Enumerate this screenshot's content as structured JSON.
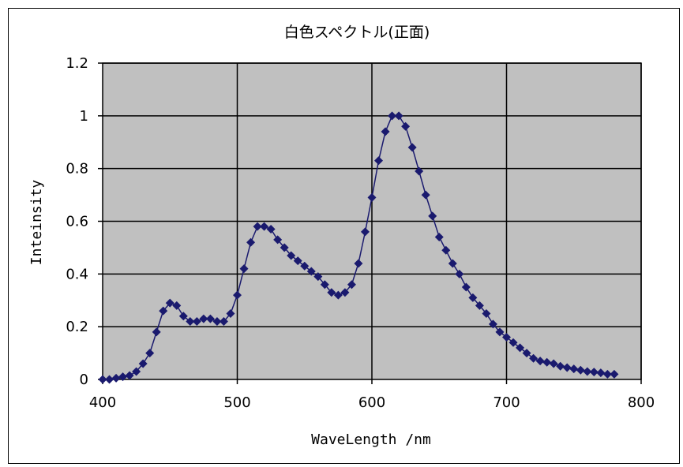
{
  "chart_data": {
    "type": "line",
    "title": "白色スペクトル(正面)",
    "xlabel": "WaveLength /nm",
    "ylabel": "Inteinsity",
    "xlim": [
      400,
      800
    ],
    "ylim": [
      0,
      1.2
    ],
    "xticks": [
      400,
      500,
      600,
      700,
      800
    ],
    "yticks": [
      0,
      0.2,
      0.4,
      0.6,
      0.8,
      1,
      1.2
    ],
    "xtick_labels": [
      "400",
      "500",
      "600",
      "700",
      "800"
    ],
    "ytick_labels": [
      "0",
      "0.2",
      "0.4",
      "0.6",
      "0.8",
      "1",
      "1.2"
    ],
    "grid": true,
    "plot_background": "#c0c0c0",
    "series_color": "#1a1a6e",
    "marker": "diamond",
    "series": [
      {
        "x": [
          400,
          405,
          410,
          415,
          420,
          425,
          430,
          435,
          440,
          445,
          450,
          455,
          460,
          465,
          470,
          475,
          480,
          485,
          490,
          495,
          500,
          505,
          510,
          515,
          520,
          525,
          530,
          535,
          540,
          545,
          550,
          555,
          560,
          565,
          570,
          575,
          580,
          585,
          590,
          595,
          600,
          605,
          610,
          615,
          620,
          625,
          630,
          635,
          640,
          645,
          650,
          655,
          660,
          665,
          670,
          675,
          680,
          685,
          690,
          695,
          700,
          705,
          710,
          715,
          720,
          725,
          730,
          735,
          740,
          745,
          750,
          755,
          760,
          765,
          770,
          775,
          780
        ],
        "values": [
          0.0,
          0.0,
          0.005,
          0.01,
          0.015,
          0.03,
          0.06,
          0.1,
          0.18,
          0.26,
          0.29,
          0.28,
          0.24,
          0.22,
          0.22,
          0.23,
          0.23,
          0.22,
          0.22,
          0.25,
          0.32,
          0.42,
          0.52,
          0.58,
          0.58,
          0.57,
          0.53,
          0.5,
          0.47,
          0.45,
          0.43,
          0.41,
          0.39,
          0.36,
          0.33,
          0.32,
          0.33,
          0.36,
          0.44,
          0.56,
          0.69,
          0.83,
          0.94,
          1.0,
          1.0,
          0.96,
          0.88,
          0.79,
          0.7,
          0.62,
          0.54,
          0.49,
          0.44,
          0.4,
          0.35,
          0.31,
          0.28,
          0.25,
          0.21,
          0.18,
          0.16,
          0.14,
          0.12,
          0.1,
          0.08,
          0.07,
          0.065,
          0.06,
          0.05,
          0.045,
          0.04,
          0.035,
          0.03,
          0.028,
          0.025,
          0.02,
          0.02
        ]
      }
    ]
  }
}
